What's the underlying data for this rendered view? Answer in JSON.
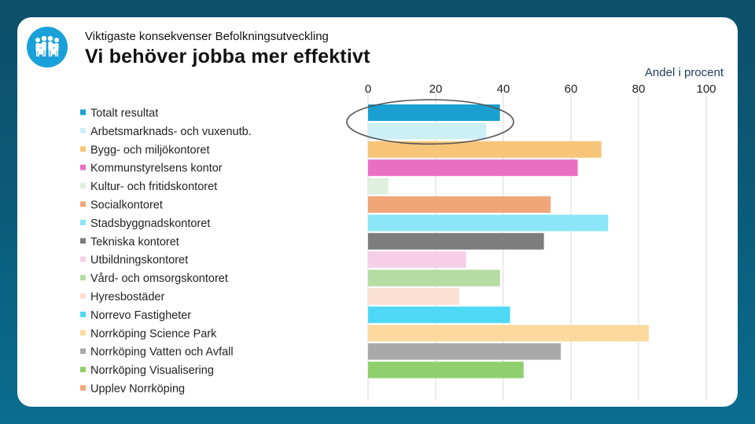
{
  "header": {
    "supertitle": "Viktigaste konsekvenser Befolkningsutveckling",
    "title": "Vi behöver jobba mer effektivt"
  },
  "logo_icon": "people-group-icon",
  "colors": {
    "background": "#0a5a78",
    "logo": "#1aa0d8",
    "highlight_ellipse": "#555555"
  },
  "chart_data": {
    "type": "bar",
    "orientation": "horizontal",
    "title": "",
    "xlabel": "Andel i procent",
    "ylabel": "",
    "xlim": [
      0,
      100
    ],
    "ticks": [
      0,
      20,
      40,
      60,
      80,
      100
    ],
    "grid": true,
    "legend_position": "left",
    "highlighted_categories": [
      "Totalt resultat",
      "Arbetsmarknads- och vuxenutb."
    ],
    "categories": [
      "Totalt resultat",
      "Arbetsmarknads- och vuxenutb.",
      "Bygg- och miljökontoret",
      "Kommunstyrelsens kontor",
      "Kultur- och fritidskontoret",
      "Socialkontoret",
      "Stadsbyggnadskontoret",
      "Tekniska kontoret",
      "Utbildningskontoret",
      "Vård- och omsorgskontoret",
      "Hyresbostäder",
      "Norrevo Fastigheter",
      "Norrköping Science Park",
      "Norrköping Vatten och Avfall",
      "Norrköping Visualisering",
      "Upplev Norrköping"
    ],
    "values": [
      39,
      35,
      69,
      62,
      6,
      54,
      71,
      52,
      29,
      39,
      27,
      42,
      83,
      57,
      46,
      0
    ],
    "bar_colors": [
      "#1aa0d0",
      "#cdeff8",
      "#f7c57a",
      "#e96fc2",
      "#dff0de",
      "#f0a679",
      "#8be6f8",
      "#7d7d7d",
      "#f6cfe6",
      "#b5dca2",
      "#fbe0d3",
      "#4fd8f6",
      "#fdd9a0",
      "#a9a9a9",
      "#8fcf6e",
      "#f0a679"
    ]
  }
}
